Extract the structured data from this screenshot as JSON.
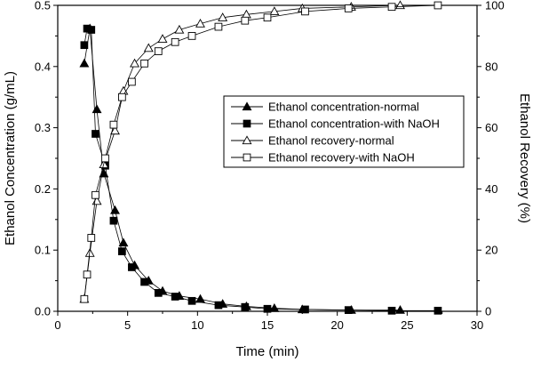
{
  "chart_data": {
    "type": "scatter",
    "title": "",
    "xlabel": "Time (min)",
    "ylabel_left": "Ethanol Concentration (g/mL)",
    "ylabel_right": "Ethanol Recovery (%)",
    "xlim": [
      0,
      30
    ],
    "ylim_left": [
      0,
      0.5
    ],
    "ylim_right": [
      0,
      100
    ],
    "xticks": [
      "0",
      "5",
      "10",
      "15",
      "20",
      "25",
      "30"
    ],
    "yticks_left": [
      "0.0",
      "0.1",
      "0.2",
      "0.3",
      "0.4",
      "0.5"
    ],
    "yticks_right": [
      "0",
      "20",
      "40",
      "60",
      "80",
      "100"
    ],
    "grid": false,
    "legend_position": "center-right",
    "series": [
      {
        "name": "Ethanol concentration-normal",
        "axis": "left",
        "marker": "filled-triangle",
        "x": [
          1.9,
          2.3,
          2.8,
          3.3,
          4.1,
          4.7,
          5.5,
          6.5,
          7.5,
          8.7,
          10.2,
          11.8,
          13.5,
          15.5,
          17.5,
          21.0,
          24.5
        ],
        "y": [
          0.405,
          0.462,
          0.33,
          0.225,
          0.165,
          0.112,
          0.075,
          0.05,
          0.033,
          0.025,
          0.02,
          0.012,
          0.008,
          0.005,
          0.003,
          0.002,
          0.002
        ]
      },
      {
        "name": "Ethanol concentration-with NaOH",
        "axis": "left",
        "marker": "filled-square",
        "x": [
          1.9,
          2.1,
          2.4,
          2.7,
          3.4,
          4.0,
          4.6,
          5.3,
          6.2,
          7.2,
          8.4,
          9.6,
          11.5,
          13.4,
          15.0,
          17.7,
          20.8,
          23.9,
          27.2
        ],
        "y": [
          0.435,
          0.462,
          0.46,
          0.29,
          0.238,
          0.148,
          0.098,
          0.072,
          0.048,
          0.03,
          0.024,
          0.017,
          0.01,
          0.007,
          0.004,
          0.003,
          0.002,
          0.001,
          0.001
        ]
      },
      {
        "name": "Ethanol recovery-normal",
        "axis": "right",
        "marker": "open-triangle",
        "x": [
          1.9,
          2.3,
          2.8,
          3.3,
          4.1,
          4.7,
          5.5,
          6.5,
          7.5,
          8.7,
          10.2,
          11.8,
          13.5,
          15.5,
          17.5,
          21.0,
          24.5
        ],
        "y": [
          4,
          19,
          36,
          48,
          59,
          72,
          81,
          86,
          89,
          92,
          94,
          96,
          97,
          98,
          99,
          99.5,
          100
        ]
      },
      {
        "name": "Ethanol recovery-with NaOH",
        "axis": "right",
        "marker": "open-square",
        "x": [
          1.9,
          2.1,
          2.4,
          2.7,
          3.4,
          4.0,
          4.6,
          5.3,
          6.2,
          7.2,
          8.4,
          9.6,
          11.5,
          13.4,
          15.0,
          17.7,
          20.8,
          23.9,
          27.2
        ],
        "y": [
          4,
          12,
          24,
          38,
          50,
          61,
          70,
          75,
          81,
          85,
          88,
          90,
          93,
          95,
          96,
          98,
          99,
          99.5,
          100
        ]
      }
    ]
  }
}
